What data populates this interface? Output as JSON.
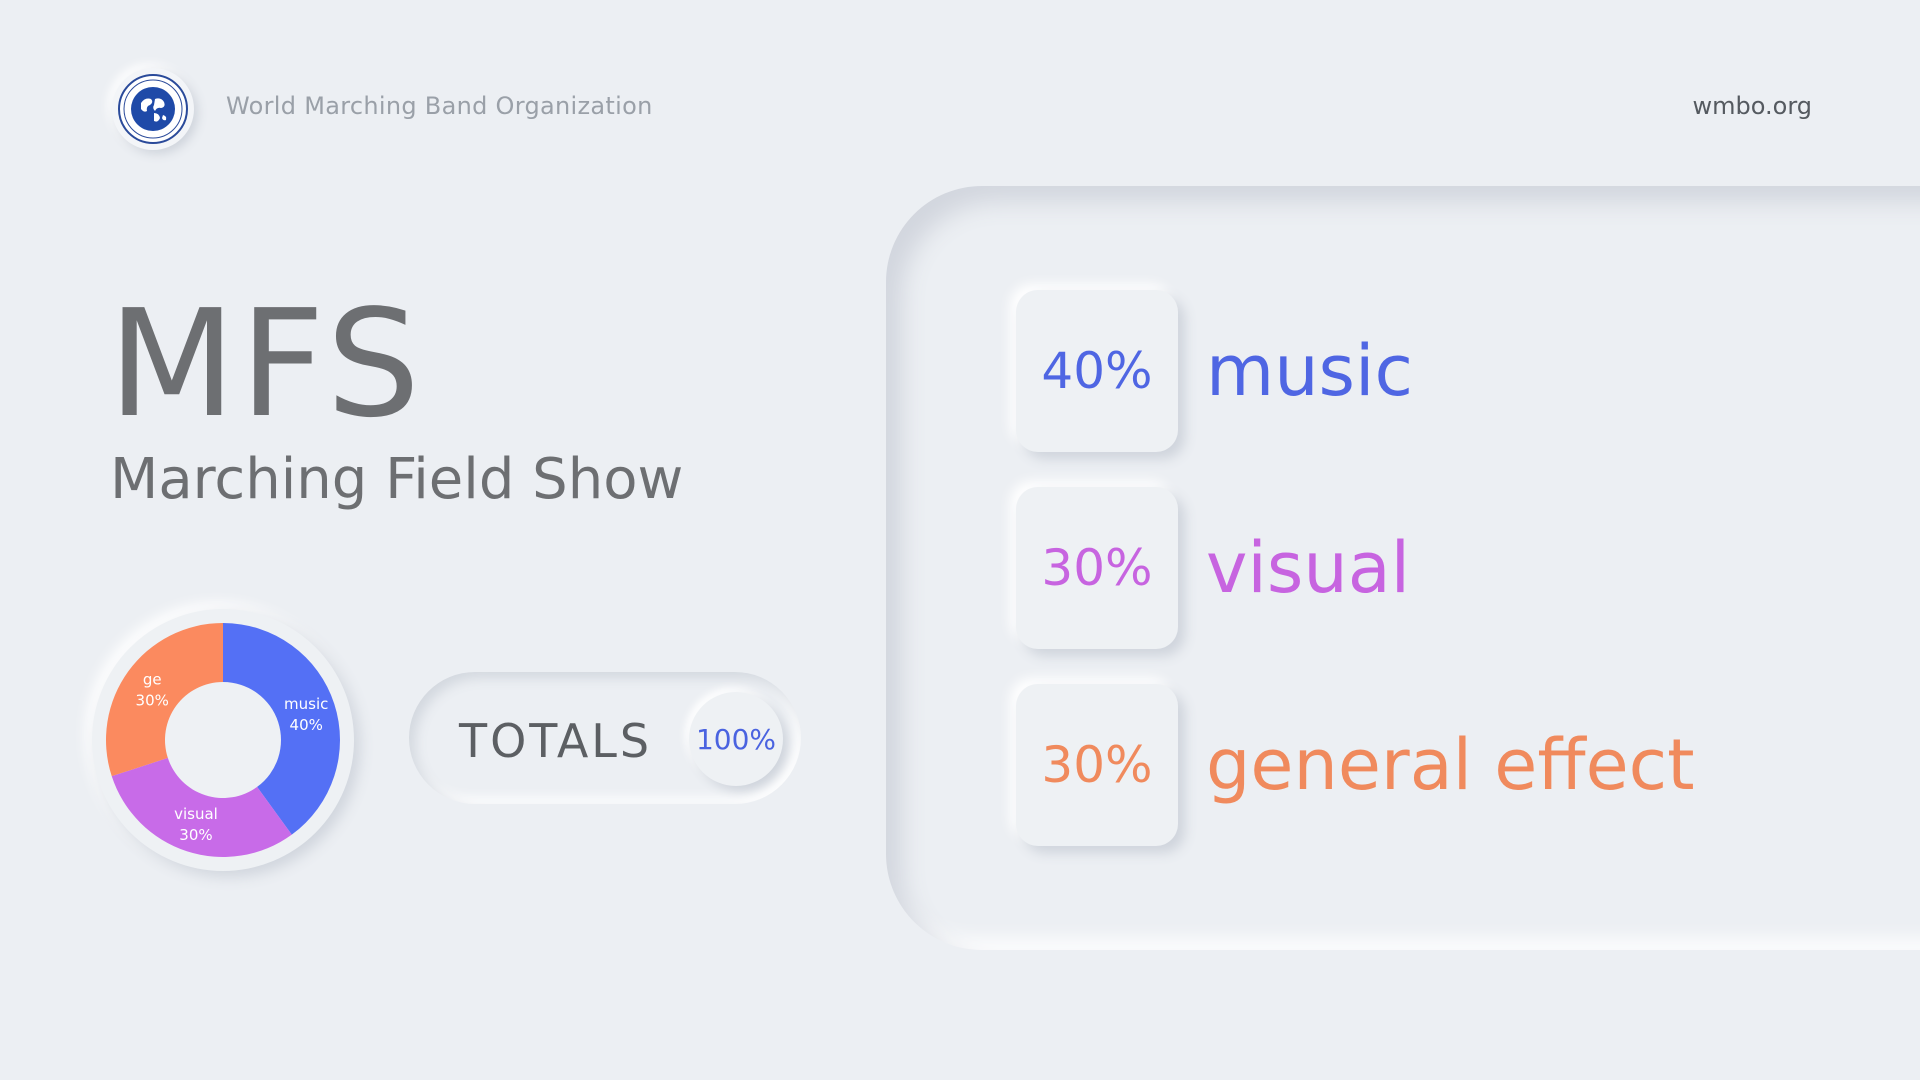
{
  "header": {
    "org_name": "World Marching Band Organization",
    "site": "wmbo.org",
    "logo_icon": "globe-logo-icon"
  },
  "title": {
    "abbr": "MFS",
    "full": "Marching Field Show"
  },
  "totals": {
    "label": "TOTALS",
    "value": "100%"
  },
  "chart_data": {
    "type": "pie",
    "categories": [
      "music",
      "visual",
      "ge"
    ],
    "values": [
      40,
      30,
      30
    ],
    "labels": [
      "40%",
      "30%",
      "30%"
    ],
    "colors": [
      "#5470f5",
      "#c86be8",
      "#fb8a5f"
    ]
  },
  "criteria": [
    {
      "percent": "40%",
      "label": "music",
      "color": "#4f66e3"
    },
    {
      "percent": "30%",
      "label": "visual",
      "color": "#c764e0"
    },
    {
      "percent": "30%",
      "label": "general effect",
      "color": "#f08a5d"
    }
  ]
}
